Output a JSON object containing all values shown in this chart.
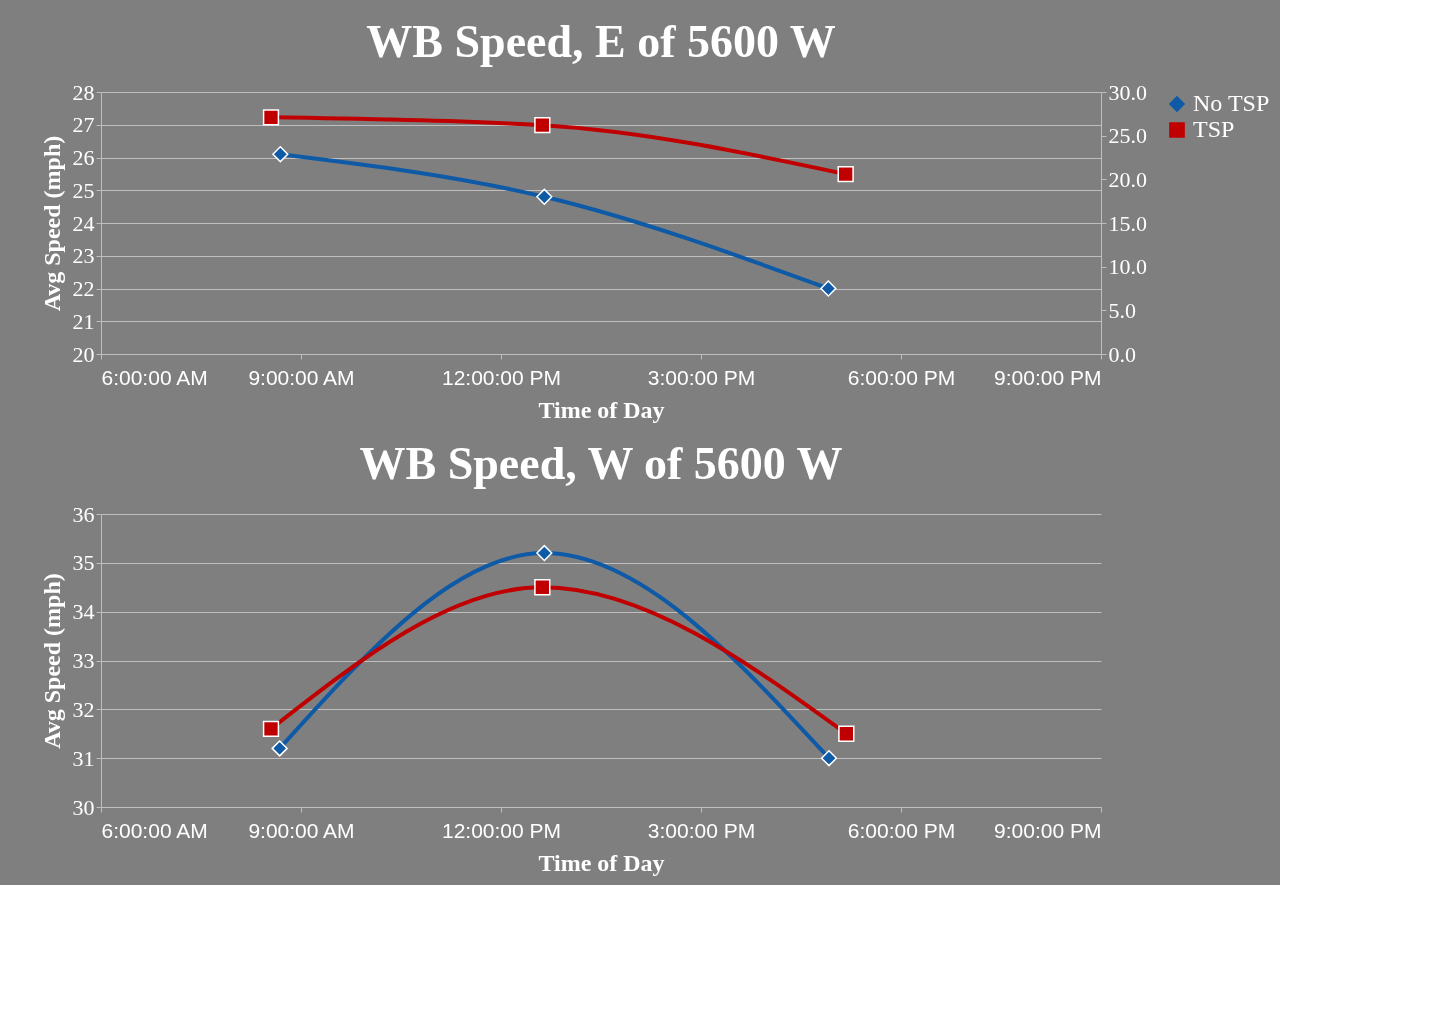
{
  "chart_data": [
    {
      "type": "line",
      "title": "WB Speed, E of 5600 W",
      "xlabel": "Time of Day",
      "ylabel": "Avg Speed (mph)",
      "xlim": [
        6,
        21
      ],
      "xticks": [
        {
          "value": 6,
          "label": "6:00:00 AM"
        },
        {
          "value": 9,
          "label": "9:00:00 AM"
        },
        {
          "value": 12,
          "label": "12:00:00 PM"
        },
        {
          "value": 15,
          "label": "3:00:00 PM"
        },
        {
          "value": 18,
          "label": "6:00:00 PM"
        },
        {
          "value": 21,
          "label": "9:00:00 PM"
        }
      ],
      "ylim": [
        20,
        28
      ],
      "yticks": [
        20,
        21,
        22,
        23,
        24,
        25,
        26,
        27,
        28
      ],
      "y2lim": [
        0,
        30
      ],
      "y2ticks": [
        {
          "value": 0,
          "label": "0.0"
        },
        {
          "value": 5,
          "label": "5.0"
        },
        {
          "value": 10,
          "label": "10.0"
        },
        {
          "value": 15,
          "label": "15.0"
        },
        {
          "value": 20,
          "label": "20.0"
        },
        {
          "value": 25,
          "label": "25.0"
        },
        {
          "value": 30,
          "label": "30.0"
        }
      ],
      "grid": "y",
      "legend": "right",
      "series": [
        {
          "name": "No TSP",
          "color": "#0e5aa7",
          "marker": "diamond",
          "x": [
            8.69,
            12.65,
            16.91
          ],
          "values": [
            26.1,
            24.8,
            22.0
          ]
        },
        {
          "name": "TSP",
          "color": "#c00000",
          "marker": "square",
          "axis": "y2",
          "x": [
            8.55,
            12.62,
            17.17
          ],
          "values": [
            27.1,
            26.2,
            20.6
          ]
        }
      ]
    },
    {
      "type": "line",
      "title": "WB Speed, W of 5600 W",
      "xlabel": "Time of Day",
      "ylabel": "Avg Speed (mph)",
      "xlim": [
        6,
        21
      ],
      "xticks": [
        {
          "value": 6,
          "label": "6:00:00 AM"
        },
        {
          "value": 9,
          "label": "9:00:00 AM"
        },
        {
          "value": 12,
          "label": "12:00:00 PM"
        },
        {
          "value": 15,
          "label": "3:00:00 PM"
        },
        {
          "value": 18,
          "label": "6:00:00 PM"
        },
        {
          "value": 21,
          "label": "9:00:00 PM"
        }
      ],
      "ylim": [
        30,
        36
      ],
      "yticks": [
        30,
        31,
        32,
        33,
        34,
        35,
        36
      ],
      "grid": "y",
      "legend": "right",
      "series": [
        {
          "name": "No TSP",
          "color": "#0e5aa7",
          "marker": "diamond",
          "x": [
            8.68,
            12.65,
            16.92
          ],
          "values": [
            31.2,
            35.2,
            31.0
          ]
        },
        {
          "name": "TSP",
          "color": "#c00000",
          "marker": "square",
          "x": [
            8.55,
            12.62,
            17.18
          ],
          "values": [
            31.6,
            34.5,
            31.5
          ]
        }
      ]
    }
  ]
}
